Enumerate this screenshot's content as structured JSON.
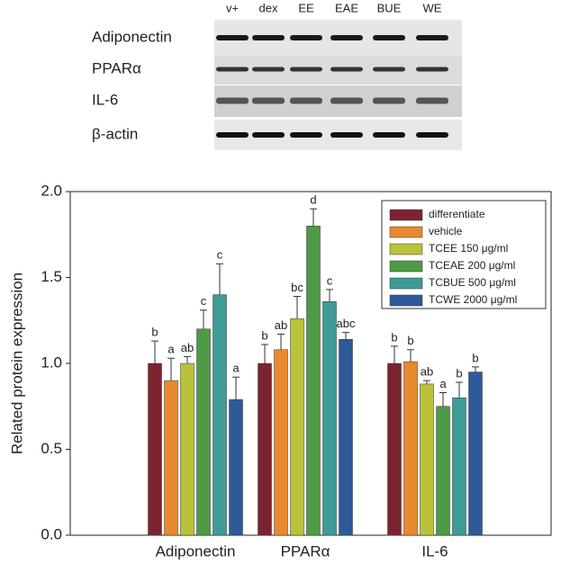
{
  "blot": {
    "lanes": [
      "v+",
      "dex",
      "EE",
      "EAE",
      "BUE",
      "WE"
    ],
    "rows": [
      "Adiponectin",
      "PPARα",
      "IL-6",
      "β-actin"
    ]
  },
  "chart_data": {
    "type": "bar",
    "ylabel": "Related protein expression",
    "categories": [
      "Adiponectin",
      "PPARα",
      "IL-6"
    ],
    "ylim": [
      0,
      2
    ],
    "yticks": [
      {
        "value": 0,
        "label": "0.0"
      },
      0.5,
      {
        "value": 1,
        "label": "1.0"
      },
      1.5,
      {
        "value": 2,
        "label": "2.0"
      }
    ],
    "legend": "upper right",
    "series": [
      {
        "name": "differentiate",
        "color": "#7b2430",
        "values": [
          1.0,
          1.0,
          1.0
        ],
        "errors": [
          0.13,
          0.11,
          0.1
        ],
        "annotations": [
          "b",
          "b",
          "b"
        ]
      },
      {
        "name": "vehicle",
        "color": "#e8892f",
        "values": [
          0.9,
          1.08,
          1.01
        ],
        "errors": [
          0.13,
          0.09,
          0.07
        ],
        "annotations": [
          "a",
          "ab",
          "b"
        ]
      },
      {
        "name": "TCEE 150 μg/ml",
        "color": "#b9c23a",
        "values": [
          1.0,
          1.26,
          0.88
        ],
        "errors": [
          0.04,
          0.13,
          0.02
        ],
        "annotations": [
          "ab",
          "bc",
          "ab"
        ]
      },
      {
        "name": "TCEAE 200 μg/ml",
        "color": "#4f9a47",
        "values": [
          1.2,
          1.8,
          0.75
        ],
        "errors": [
          0.11,
          0.1,
          0.08
        ],
        "annotations": [
          "c",
          "d",
          "a"
        ]
      },
      {
        "name": "TCBUE 500 μg/ml",
        "color": "#3e9b96",
        "values": [
          1.4,
          1.36,
          0.8
        ],
        "errors": [
          0.18,
          0.07,
          0.09
        ],
        "annotations": [
          "c",
          "c",
          "b"
        ]
      },
      {
        "name": "TCWE 2000 μg/ml",
        "color": "#2d5a9a",
        "values": [
          0.79,
          1.14,
          0.95
        ],
        "errors": [
          0.13,
          0.04,
          0.03
        ],
        "annotations": [
          "a",
          "abc",
          "b"
        ]
      }
    ]
  }
}
